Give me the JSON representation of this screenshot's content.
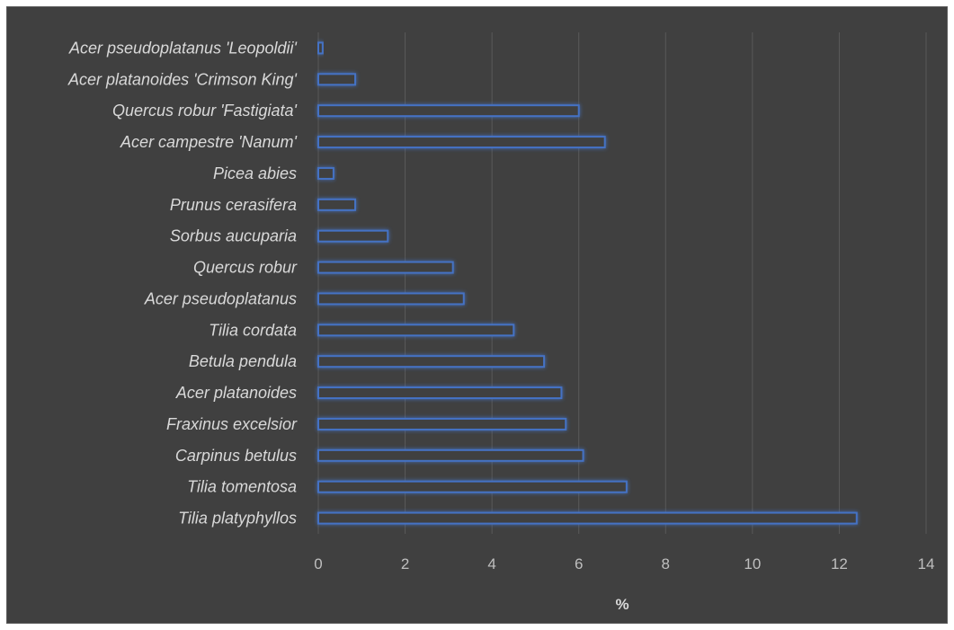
{
  "chart_data": {
    "type": "bar",
    "orientation": "horizontal",
    "title": "",
    "xlabel": "%",
    "ylabel": "",
    "xlim": [
      0,
      14
    ],
    "xticks": [
      0,
      2,
      4,
      6,
      8,
      10,
      12,
      14
    ],
    "grid": true,
    "categories": [
      "Acer pseudoplatanus 'Leopoldii'",
      "Acer platanoides 'Crimson King'",
      "Quercus robur 'Fastigiata'",
      "Acer campestre 'Nanum'",
      "Picea abies",
      "Prunus cerasifera",
      "Sorbus aucuparia",
      "Quercus robur",
      "Acer pseudoplatanus",
      "Tilia cordata",
      "Betula pendula",
      "Acer platanoides",
      "Fraxinus excelsior",
      "Carpinus betulus",
      "Tilia tomentosa",
      "Tilia platyphyllos"
    ],
    "values": [
      0.1,
      0.85,
      6.0,
      6.6,
      0.35,
      0.85,
      1.6,
      3.1,
      3.35,
      4.5,
      5.2,
      5.6,
      5.7,
      6.1,
      7.1,
      12.4
    ],
    "colors": {
      "background": "#404040",
      "bar_outline": "#4472c4",
      "gridline": "#595959",
      "text": "#d9d9d9"
    }
  }
}
